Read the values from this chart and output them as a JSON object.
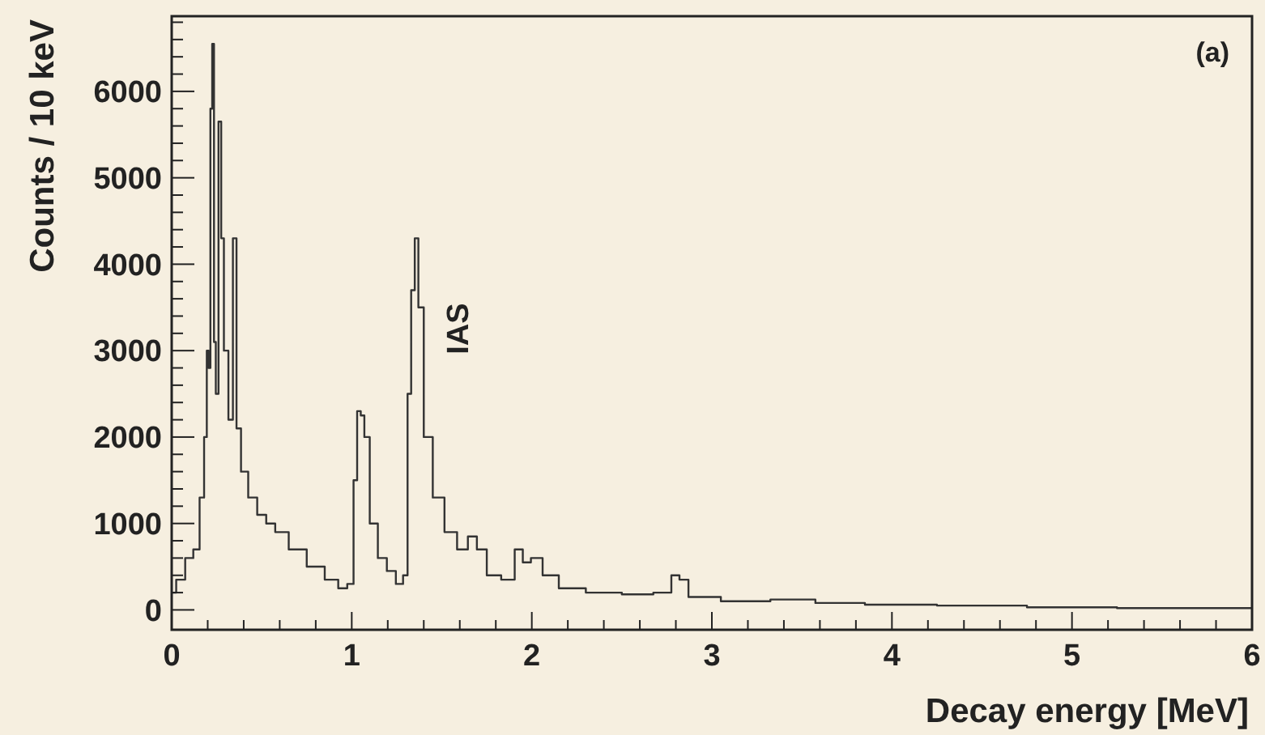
{
  "chart_data": {
    "type": "step",
    "xlabel": "Decay energy [MeV]",
    "ylabel": "Counts / 10 keV",
    "annotations": [
      {
        "text": "IAS",
        "x": 1.36,
        "y": 4300
      },
      "(a)"
    ],
    "xlim": [
      0,
      6
    ],
    "ylim": [
      -230,
      6870
    ],
    "xticks": [
      0,
      {
        "value": 0.2,
        "label": null
      },
      {
        "value": 0.4,
        "label": null
      },
      {
        "value": 0.6,
        "label": null
      },
      {
        "value": 0.8,
        "label": null
      },
      1,
      {
        "value": 1.2,
        "label": null
      },
      {
        "value": 1.4,
        "label": null
      },
      {
        "value": 1.6,
        "label": null
      },
      {
        "value": 1.8,
        "label": null
      },
      2,
      {
        "value": 2.2,
        "label": null
      },
      {
        "value": 2.4,
        "label": null
      },
      {
        "value": 2.6,
        "label": null
      },
      {
        "value": 2.8,
        "label": null
      },
      3,
      {
        "value": 3.2,
        "label": null
      },
      {
        "value": 3.4,
        "label": null
      },
      {
        "value": 3.6,
        "label": null
      },
      {
        "value": 3.8,
        "label": null
      },
      4,
      {
        "value": 4.2,
        "label": null
      },
      {
        "value": 4.4,
        "label": null
      },
      {
        "value": 4.6,
        "label": null
      },
      {
        "value": 4.8,
        "label": null
      },
      5,
      {
        "value": 5.2,
        "label": null
      },
      {
        "value": 5.4,
        "label": null
      },
      {
        "value": 5.6,
        "label": null
      },
      {
        "value": 5.8,
        "label": null
      },
      6
    ],
    "yticks": [
      0,
      {
        "value": 200,
        "label": null
      },
      {
        "value": 400,
        "label": null
      },
      {
        "value": 600,
        "label": null
      },
      {
        "value": 800,
        "label": null
      },
      1000,
      {
        "value": 1200,
        "label": null
      },
      {
        "value": 1400,
        "label": null
      },
      {
        "value": 1600,
        "label": null
      },
      {
        "value": 1800,
        "label": null
      },
      2000,
      {
        "value": 2200,
        "label": null
      },
      {
        "value": 2400,
        "label": null
      },
      {
        "value": 2600,
        "label": null
      },
      {
        "value": 2800,
        "label": null
      },
      3000,
      {
        "value": 3200,
        "label": null
      },
      {
        "value": 3400,
        "label": null
      },
      {
        "value": 3600,
        "label": null
      },
      {
        "value": 3800,
        "label": null
      },
      4000,
      {
        "value": 4200,
        "label": null
      },
      {
        "value": 4400,
        "label": null
      },
      {
        "value": 4600,
        "label": null
      },
      {
        "value": 4800,
        "label": null
      },
      5000,
      {
        "value": 5200,
        "label": null
      },
      {
        "value": 5400,
        "label": null
      },
      {
        "value": 5600,
        "label": null
      },
      {
        "value": 5800,
        "label": null
      },
      6000,
      {
        "value": 6200,
        "label": null
      },
      {
        "value": 6400,
        "label": null
      },
      {
        "value": 6600,
        "label": null
      },
      {
        "value": 6800,
        "label": null
      }
    ],
    "grid": false,
    "series": [
      {
        "color": "#333333",
        "x": [
          0,
          0.05,
          0.1,
          0.14,
          0.17,
          0.19,
          0.2,
          0.21,
          0.22,
          0.23,
          0.24,
          0.25,
          0.27,
          0.28,
          0.3,
          0.33,
          0.35,
          0.37,
          0.4,
          0.45,
          0.5,
          0.55,
          0.6,
          0.7,
          0.8,
          0.9,
          0.95,
          1.0,
          1.02,
          1.04,
          1.06,
          1.08,
          1.12,
          1.17,
          1.22,
          1.27,
          1.3,
          1.32,
          1.34,
          1.36,
          1.38,
          1.42,
          1.48,
          1.55,
          1.62,
          1.67,
          1.72,
          1.78,
          1.88,
          1.93,
          1.97,
          2.02,
          2.1,
          2.2,
          2.4,
          2.6,
          2.75,
          2.8,
          2.84,
          2.9,
          3.2,
          3.45,
          3.7,
          4.0,
          4.5,
          5.0,
          5.5,
          6.0
        ],
        "values": [
          200,
          350,
          600,
          700,
          1300,
          2000,
          3000,
          2800,
          5800,
          6550,
          3100,
          2500,
          5650,
          4300,
          3000,
          2200,
          4300,
          2100,
          1600,
          1300,
          1100,
          1000,
          900,
          700,
          500,
          350,
          250,
          300,
          1500,
          2300,
          2250,
          2000,
          1000,
          600,
          450,
          300,
          400,
          2500,
          3700,
          4300,
          3500,
          2000,
          1300,
          900,
          700,
          850,
          700,
          400,
          350,
          700,
          550,
          600,
          400,
          250,
          200,
          180,
          200,
          400,
          350,
          150,
          100,
          120,
          80,
          60,
          50,
          30,
          20,
          20
        ]
      }
    ]
  }
}
